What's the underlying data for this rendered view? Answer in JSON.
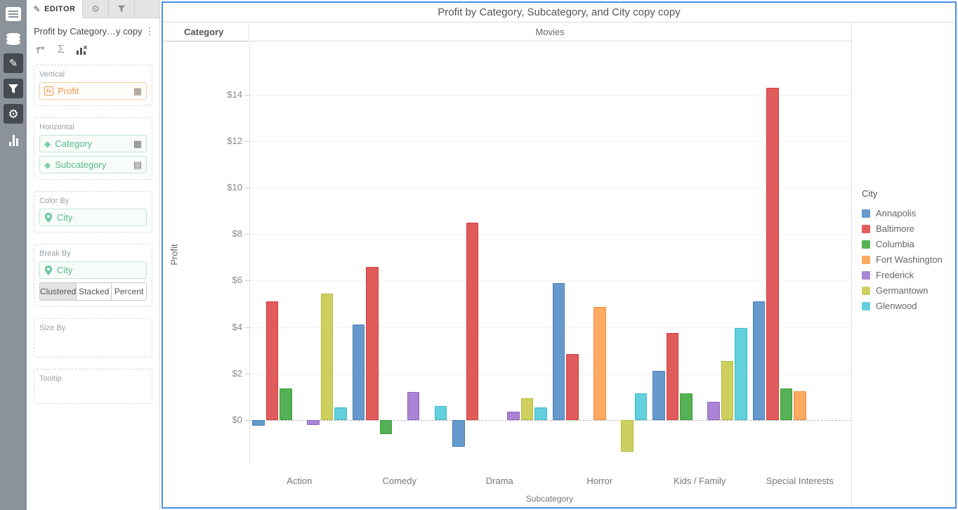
{
  "iconbar": {
    "items": [
      "report-list",
      "data-sources",
      "edit",
      "filters",
      "settings",
      "chart-type"
    ]
  },
  "editor": {
    "tabs": {
      "editor_label": "EDITOR"
    },
    "title": "Profit by Category…y copy",
    "toolbar": {
      "fx_badge": "fx"
    },
    "sections": {
      "vertical": {
        "label": "Vertical",
        "field": "Profit"
      },
      "horizontal": {
        "label": "Horizontal",
        "fields": [
          "Category",
          "Subcategory"
        ]
      },
      "color_by": {
        "label": "Color By",
        "field": "City"
      },
      "break_by": {
        "label": "Break By",
        "field": "City",
        "modes": [
          "Clustered",
          "Stacked",
          "Percent"
        ],
        "active_mode": "Clustered"
      },
      "size_by": {
        "label": "Size By"
      },
      "tooltip": {
        "label": "Tooltip"
      }
    }
  },
  "chart": {
    "title": "Profit by Category, Subcategory, and City copy copy",
    "header": {
      "category_label": "Category",
      "category_value": "Movies"
    },
    "accent_border": "#4a90e2"
  },
  "chart_data": {
    "type": "bar",
    "title": "Profit by Category, Subcategory, and City copy copy",
    "xlabel": "Subcategory",
    "ylabel": "Profit",
    "grid": true,
    "zero_line": "dashed",
    "legend_title": "City",
    "legend_position": "right",
    "ylim": [
      -1.9,
      16.25
    ],
    "y_ticks": [
      {
        "value": 0,
        "label": "$0"
      },
      {
        "value": 2,
        "label": "$2"
      },
      {
        "value": 4,
        "label": "$4"
      },
      {
        "value": 6,
        "label": "$6"
      },
      {
        "value": 8,
        "label": "$8"
      },
      {
        "value": 10,
        "label": "$10"
      },
      {
        "value": 12,
        "label": "$12"
      },
      {
        "value": 14,
        "label": "$14"
      }
    ],
    "categories": [
      "Action",
      "Comedy",
      "Drama",
      "Horror",
      "Kids / Family",
      "Special Interests"
    ],
    "series": [
      {
        "name": "Annapolis",
        "color": "#6699cc",
        "stroke": "#4a7db8",
        "values": [
          -0.25,
          4.1,
          -1.15,
          5.9,
          2.1,
          5.1
        ]
      },
      {
        "name": "Baltimore",
        "color": "#e05c5c",
        "stroke": "#d43b3b",
        "values": [
          5.1,
          6.6,
          8.5,
          2.85,
          3.75,
          14.3
        ]
      },
      {
        "name": "Columbia",
        "color": "#54b254",
        "stroke": "#3a9b3a",
        "values": [
          1.35,
          -0.6,
          null,
          null,
          1.15,
          1.35
        ]
      },
      {
        "name": "Fort Washington",
        "color": "#fdaa63",
        "stroke": "#f08a38",
        "values": [
          null,
          null,
          null,
          4.85,
          null,
          1.25
        ]
      },
      {
        "name": "Frederick",
        "color": "#ab84d6",
        "stroke": "#9263c4",
        "values": [
          -0.2,
          1.2,
          0.35,
          null,
          0.8,
          null
        ]
      },
      {
        "name": "Germantown",
        "color": "#cdd05f",
        "stroke": "#b4b831",
        "values": [
          5.45,
          null,
          0.95,
          -1.35,
          2.55,
          null
        ]
      },
      {
        "name": "Glenwood",
        "color": "#62d1dd",
        "stroke": "#38b9c9",
        "values": [
          0.55,
          0.6,
          0.55,
          1.15,
          3.95,
          null
        ]
      }
    ]
  }
}
